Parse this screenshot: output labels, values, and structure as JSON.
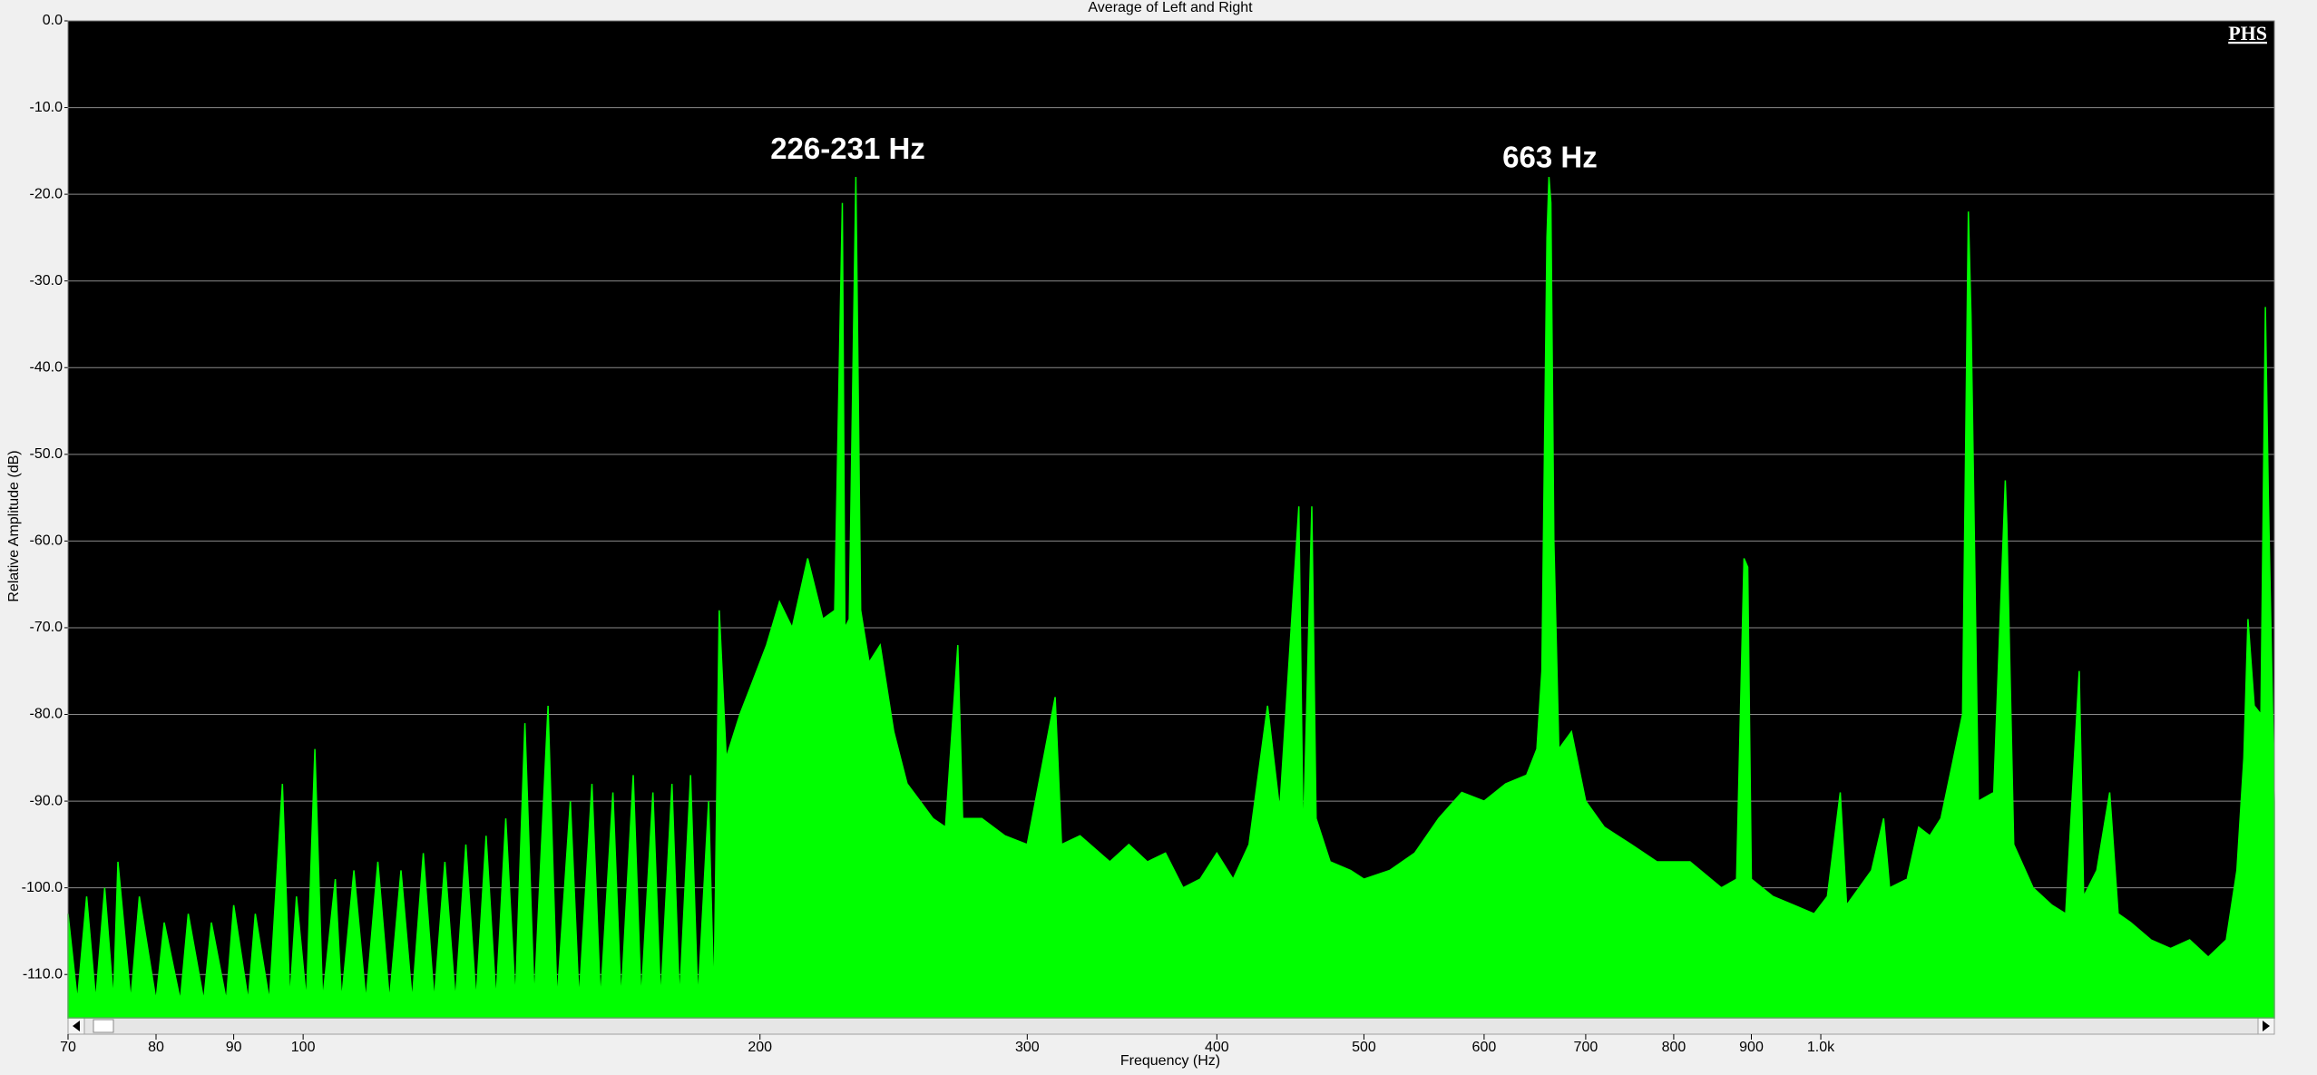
{
  "chart_data": {
    "type": "area",
    "title": "Average of Left and Right",
    "x_label": "Frequency (Hz)",
    "y_label": "Relative Amplitude (dB)",
    "annotations": [
      {
        "text": "226-231 Hz",
        "x": 228.5,
        "y": -15
      },
      {
        "text": "663 Hz",
        "x": 663,
        "y": -16
      }
    ],
    "logo": "PHS",
    "color": "#00ff00",
    "background": "#000000",
    "grid": true,
    "xlog": true,
    "xlim": [
      70,
      1990
    ],
    "ylim": [
      -115,
      0
    ],
    "xticks": [
      70,
      80,
      90,
      100,
      200,
      300,
      400,
      500,
      600,
      700,
      800,
      900,
      {
        "value": 1000,
        "label": "1.0k"
      }
    ],
    "yticks": [
      {
        "value": 0,
        "label": "0.0"
      },
      {
        "value": -10,
        "label": "-10.0"
      },
      {
        "value": -20,
        "label": "-20.0"
      },
      {
        "value": -30,
        "label": "-30.0"
      },
      {
        "value": -40,
        "label": "-40.0"
      },
      {
        "value": -50,
        "label": "-50.0"
      },
      {
        "value": -60,
        "label": "-60.0"
      },
      {
        "value": -70,
        "label": "-70.0"
      },
      {
        "value": -80,
        "label": "-80.0"
      },
      {
        "value": -90,
        "label": "-90.0"
      },
      {
        "value": -100,
        "label": "-100.0"
      },
      {
        "value": -110,
        "label": "-110.0"
      }
    ],
    "x": [
      70,
      71,
      72,
      73,
      74,
      75,
      75.5,
      77,
      78,
      80,
      81,
      83,
      84,
      86,
      87,
      89,
      90,
      92,
      93,
      95,
      96.9,
      98,
      99,
      100.5,
      101.8,
      103,
      105,
      106,
      108,
      110,
      112,
      114,
      116,
      118,
      120,
      122,
      124,
      126,
      128,
      130,
      132,
      134,
      136,
      138,
      140,
      142,
      145,
      147,
      150,
      152,
      155,
      157,
      160,
      162,
      165,
      167,
      170,
      172,
      175,
      177,
      180,
      182,
      185,
      186.5,
      188,
      190,
      194,
      198,
      202,
      206,
      210,
      215,
      220,
      224,
      226.6,
      227.5,
      229,
      231.3,
      233,
      236,
      240,
      245,
      250,
      255,
      260,
      265,
      270,
      272,
      280,
      290,
      300,
      313,
      316,
      325,
      340,
      350,
      360,
      370,
      380,
      390,
      400,
      410,
      420,
      432,
      440,
      453,
      456,
      462,
      465,
      475,
      490,
      500,
      520,
      540,
      560,
      580,
      600,
      620,
      640,
      650,
      655,
      660,
      662,
      664,
      667,
      672,
      685,
      700,
      720,
      750,
      780,
      820,
      860,
      880,
      890,
      895,
      900,
      930,
      960,
      990,
      1010,
      1030,
      1040,
      1080,
      1100,
      1110,
      1140,
      1160,
      1180,
      1200,
      1220,
      1240,
      1251,
      1256,
      1270,
      1300,
      1323,
      1326,
      1340,
      1380,
      1420,
      1450,
      1480,
      1490,
      1520,
      1550,
      1570,
      1600,
      1650,
      1700,
      1750,
      1800,
      1850,
      1880,
      1900,
      1912,
      1930,
      1950,
      1963,
      1972,
      1990
    ],
    "values": [
      -103,
      -113,
      -101,
      -113,
      -100,
      -113,
      -97,
      -113,
      -101,
      -113,
      -104,
      -113,
      -103,
      -113,
      -104,
      -113,
      -102,
      -113,
      -103,
      -113,
      -88,
      -113,
      -101,
      -113,
      -84,
      -113,
      -99,
      -113,
      -98,
      -113,
      -97,
      -113,
      -98,
      -113,
      -96,
      -113,
      -97,
      -113,
      -95,
      -113,
      -94,
      -113,
      -92,
      -113,
      -81,
      -113,
      -79,
      -113,
      -90,
      -113,
      -88,
      -113,
      -89,
      -113,
      -87,
      -113,
      -89,
      -113,
      -88,
      -113,
      -87,
      -113,
      -90,
      -113,
      -68,
      -85,
      -80,
      -76,
      -72,
      -67,
      -70,
      -62,
      -69,
      -68,
      -21,
      -70,
      -69,
      -18,
      -68,
      -74,
      -72,
      -82,
      -88,
      -90,
      -92,
      -93,
      -72,
      -92,
      -92,
      -94,
      -95,
      -78,
      -95,
      -94,
      -97,
      -95,
      -97,
      -96,
      -100,
      -99,
      -96,
      -99,
      -95,
      -79,
      -91,
      -56,
      -95,
      -56,
      -92,
      -97,
      -98,
      -99,
      -98,
      -96,
      -92,
      -89,
      -90,
      -88,
      -87,
      -84,
      -75,
      -25,
      -18,
      -21,
      -60,
      -84,
      -82,
      -90,
      -93,
      -95,
      -97,
      -97,
      -100,
      -99,
      -62,
      -63,
      -99,
      -101,
      -102,
      -103,
      -101,
      -89,
      -102,
      -98,
      -92,
      -100,
      -99,
      -93,
      -94,
      -92,
      -86,
      -80,
      -22,
      -34,
      -90,
      -89,
      -53,
      -58,
      -95,
      -100,
      -102,
      -103,
      -75,
      -101,
      -98,
      -89,
      -103,
      -104,
      -106,
      -107,
      -106,
      -108,
      -106,
      -98,
      -85,
      -69,
      -79,
      -80,
      -33,
      -55,
      -90
    ]
  }
}
